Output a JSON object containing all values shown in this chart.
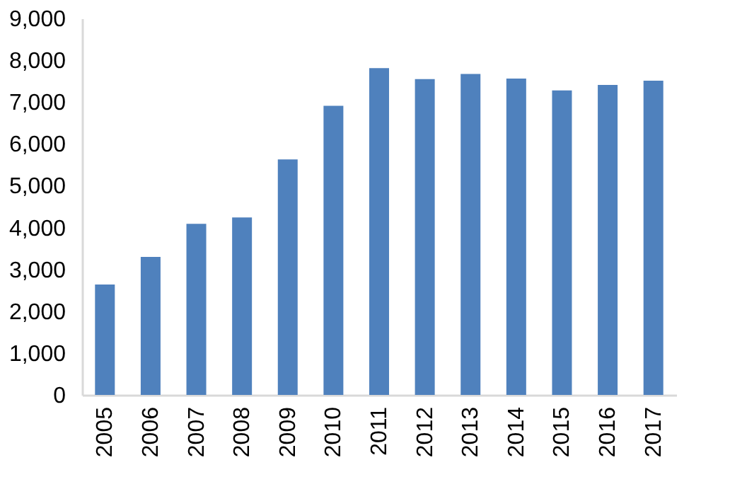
{
  "chart_data": {
    "type": "bar",
    "categories": [
      "2005",
      "2006",
      "2007",
      "2008",
      "2009",
      "2010",
      "2011",
      "2012",
      "2013",
      "2014",
      "2015",
      "2016",
      "2017"
    ],
    "values": [
      2640,
      3300,
      4090,
      4240,
      5630,
      6910,
      7810,
      7550,
      7670,
      7560,
      7280,
      7410,
      7510
    ],
    "color": "#4f81bd",
    "ylim": [
      0,
      9000
    ],
    "yticks": [
      0,
      {
        "value": 1000,
        "label": "1,000"
      },
      {
        "value": 2000,
        "label": "2,000"
      },
      {
        "value": 3000,
        "label": "3,000"
      },
      {
        "value": 4000,
        "label": "4,000"
      },
      {
        "value": 5000,
        "label": "5,000"
      },
      {
        "value": 6000,
        "label": "6,000"
      },
      {
        "value": 7000,
        "label": "7,000"
      },
      {
        "value": 8000,
        "label": "8,000"
      },
      {
        "value": 9000,
        "label": "9,000"
      }
    ],
    "grid": false
  }
}
